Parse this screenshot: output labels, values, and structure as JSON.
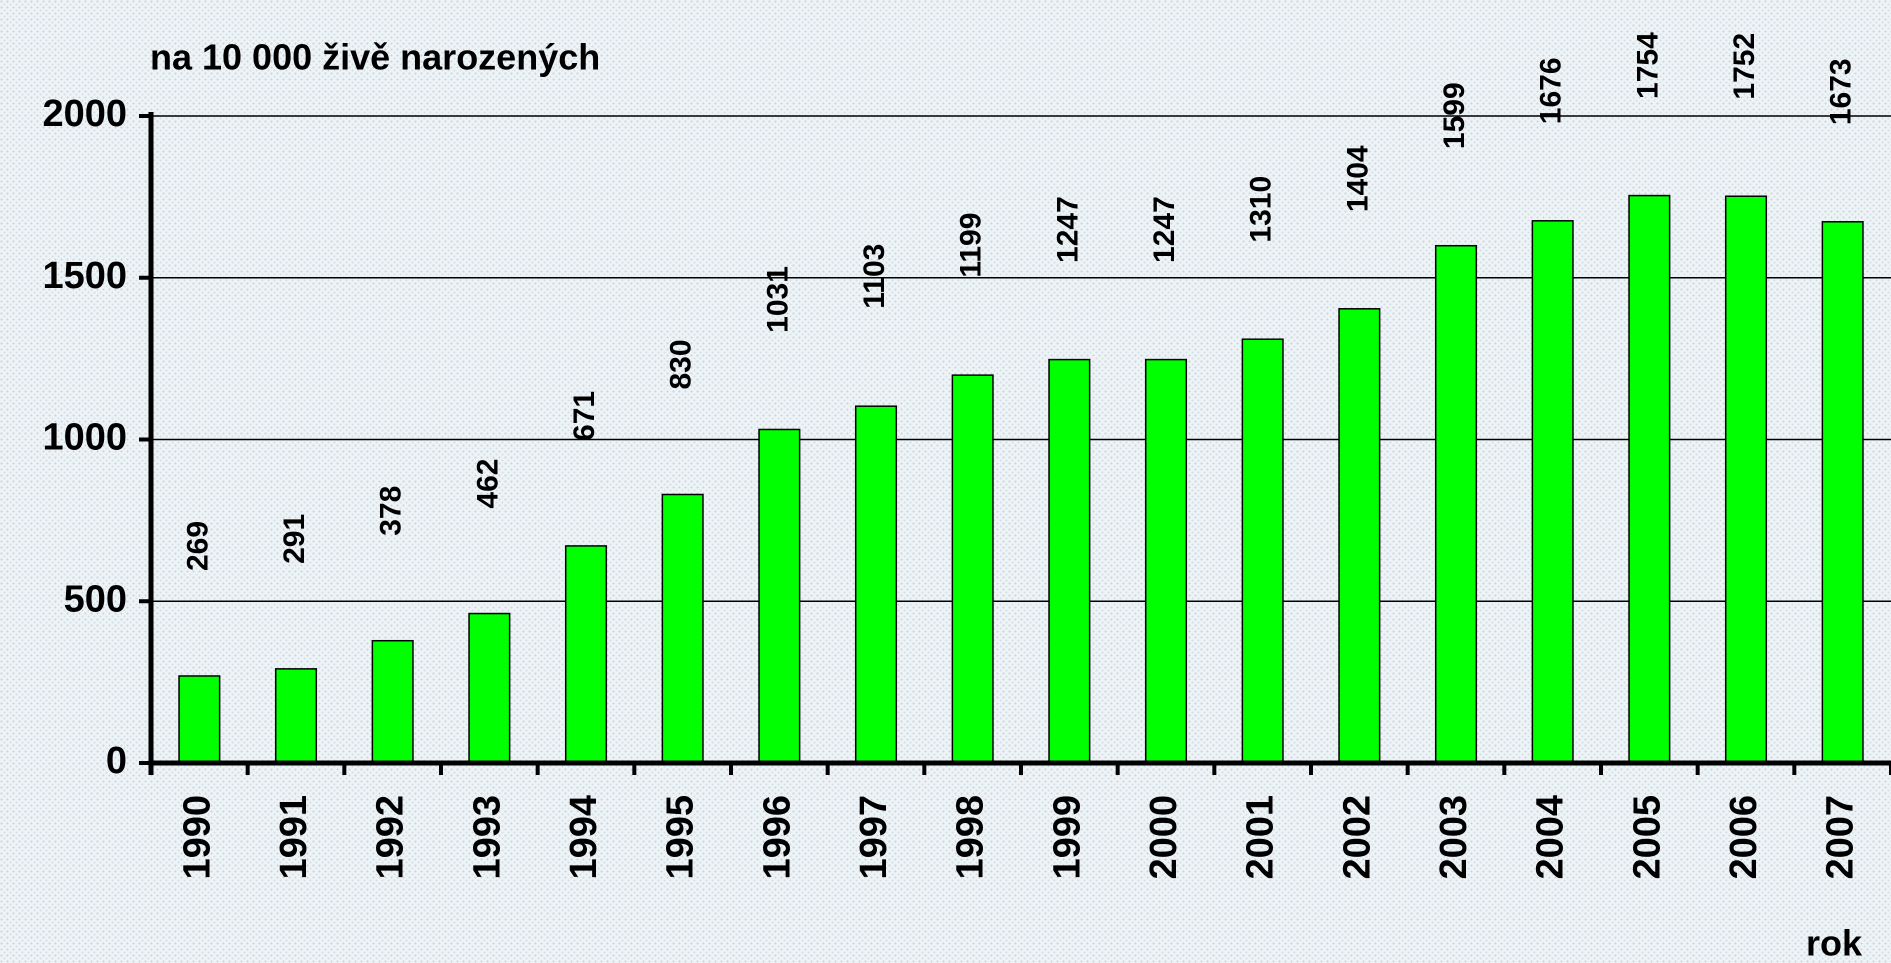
{
  "chart_data": {
    "type": "bar",
    "title": "na  10 000 živě narozených",
    "x_label": "rok",
    "categories": [
      "1990",
      "1991",
      "1992",
      "1993",
      "1994",
      "1995",
      "1996",
      "1997",
      "1998",
      "1999",
      "2000",
      "2001",
      "2002",
      "2003",
      "2004",
      "2005",
      "2006",
      "2007"
    ],
    "values": [
      269,
      291,
      378,
      462,
      671,
      830,
      1031,
      1103,
      1199,
      1247,
      1247,
      1310,
      1404,
      1599,
      1676,
      1754,
      1752,
      1673
    ],
    "color": "#00ff00",
    "ylim": [
      0,
      2000
    ],
    "yticks": [
      0,
      500,
      1000,
      1500,
      2000
    ],
    "grid": true
  }
}
